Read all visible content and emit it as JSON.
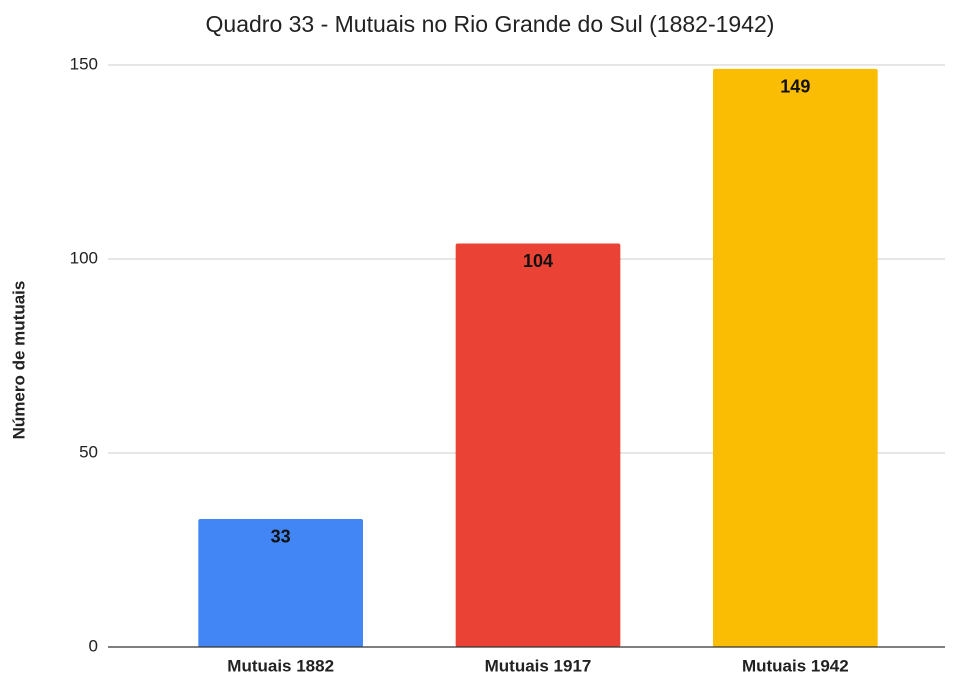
{
  "chart_data": {
    "type": "bar",
    "title": "Quadro 33 - Mutuais no Rio Grande do Sul (1882-1942)",
    "ylabel": "Número de mutuais",
    "categories": [
      "Mutuais 1882",
      "Mutuais 1917",
      "Mutuais 1942"
    ],
    "values": [
      33,
      104,
      149
    ],
    "colors": [
      "#4285f4",
      "#ea4335",
      "#fbbc04"
    ],
    "ylim": [
      0,
      150
    ],
    "yticks": [
      0,
      50,
      100,
      150
    ],
    "grid": true
  }
}
